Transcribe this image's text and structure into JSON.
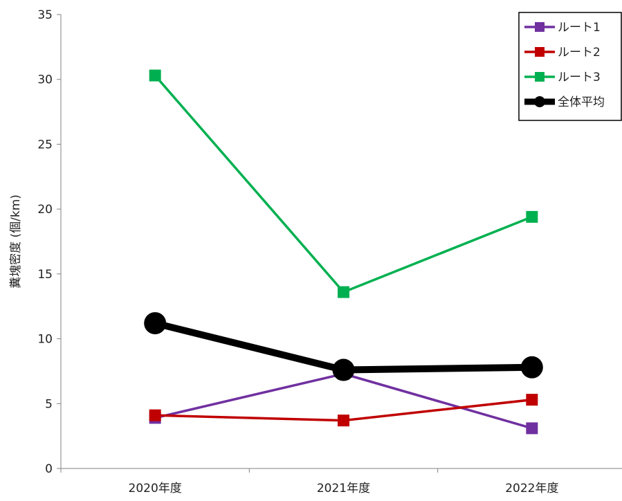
{
  "chart_data": {
    "type": "line",
    "title": "",
    "xlabel": "",
    "ylabel": "糞塊密度 (個/km)",
    "categories": [
      "2020年度",
      "2021年度",
      "2022年度"
    ],
    "ylim": [
      0,
      35
    ],
    "yticks": [
      0,
      5,
      10,
      15,
      20,
      25,
      30,
      35
    ],
    "ytick_labels": [
      "0",
      "5",
      "10",
      "15",
      "20",
      "25",
      "30",
      "35"
    ],
    "grid": false,
    "legend_position": "top-right",
    "series": [
      {
        "name": "ルート1",
        "values": [
          3.9,
          7.3,
          3.1
        ],
        "color": "#7030a0",
        "marker": "square"
      },
      {
        "name": "ルート2",
        "values": [
          4.1,
          3.7,
          5.3
        ],
        "color": "#c00000",
        "marker": "square"
      },
      {
        "name": "ルート3",
        "values": [
          30.3,
          13.6,
          19.4
        ],
        "color": "#00b050",
        "marker": "square"
      },
      {
        "name": "全体平均",
        "values": [
          11.2,
          7.6,
          7.8
        ],
        "color": "#000000",
        "marker": "circle"
      }
    ]
  }
}
